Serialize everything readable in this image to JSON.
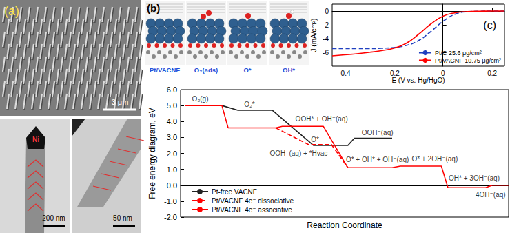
{
  "panels": {
    "a": {
      "label": "(a)",
      "scale_bars": [
        "3 μm",
        "200 nm",
        "50 nm"
      ],
      "particle_label": "Ni"
    },
    "b": {
      "label": "(b)",
      "structures": [
        "Pt/VACNF",
        "O₂(ads)",
        "O*",
        "OH*"
      ]
    }
  },
  "chart_data": [
    {
      "type": "line",
      "x_label": "Reaction Coordinate",
      "y_label": "Free energy diagram, eV",
      "xlim": [
        0,
        10
      ],
      "ylim": [
        -2,
        6
      ],
      "yticks": [
        {
          "value": 6,
          "label": "6.0"
        },
        {
          "value": 5,
          "label": "5.0"
        },
        {
          "value": 4,
          "label": "4.0"
        },
        {
          "value": 3,
          "label": "3.0"
        },
        {
          "value": 2,
          "label": "2.0"
        },
        {
          "value": 1,
          "label": "1.0"
        },
        {
          "value": 0,
          "label": "0.0"
        },
        {
          "value": -1,
          "label": "-1.0"
        },
        {
          "value": -2,
          "label": "-2.0"
        }
      ],
      "tick_labels": "y",
      "grid": false,
      "legend": "lower left",
      "series": [
        {
          "name": "Pt-free VACNF",
          "color": "#222222",
          "line_style": "solid",
          "x": [
            0.13,
            1.26,
            1.75,
            2.8,
            4.05,
            5.1,
            5.3,
            6.45
          ],
          "values": [
            5.0,
            5.0,
            4.7,
            4.7,
            2.5,
            2.5,
            2.95,
            2.95
          ]
        },
        {
          "name": "Pt/VACNF 4e⁻ dissociative",
          "color": "#ff0000",
          "line_style": "dashed",
          "x": [
            2.9,
            3.9,
            4.6,
            5.1
          ],
          "values": [
            3.6,
            2.55,
            2.55,
            1.1
          ]
        },
        {
          "name": "Pt/VACNF 4e⁻ associative",
          "color": "#ff0000",
          "line_style": "solid",
          "x": [
            0.13,
            1.26,
            1.45,
            2.9,
            3.1,
            4.35,
            5.1,
            6.45,
            6.7,
            7.95,
            8.15,
            9.3,
            9.5,
            10
          ],
          "values": [
            5.0,
            5.0,
            3.6,
            3.6,
            3.7,
            3.7,
            1.1,
            1.1,
            1.2,
            1.2,
            -0.15,
            -0.15,
            0.0,
            0.0
          ]
        }
      ],
      "annotations": [
        {
          "text": "O₂(g)",
          "x": 0.6,
          "y": 5.4
        },
        {
          "text": "O₂*",
          "x": 2.1,
          "y": 5.05
        },
        {
          "text": "OOH* + OH⁻(aq)",
          "x": 4.3,
          "y": 4.15
        },
        {
          "text": "OOH⁻(aq)",
          "x": 6.0,
          "y": 3.3
        },
        {
          "text": "O*",
          "x": 4.1,
          "y": 2.85
        },
        {
          "text": "OOH⁻(aq) + *Hvac",
          "x": 3.6,
          "y": 2.0
        },
        {
          "text": "O* + OH* + OH⁻(aq)",
          "x": 6.0,
          "y": 1.6
        },
        {
          "text": "O* + 2OH⁻(aq)",
          "x": 7.75,
          "y": 1.65
        },
        {
          "text": "OH* + 3OH⁻(aq)",
          "x": 8.95,
          "y": 0.45
        },
        {
          "text": "4OH⁻(aq)",
          "x": 9.45,
          "y": -0.6
        }
      ]
    },
    {
      "type": "line",
      "label": "(c)",
      "x_label": "E (V vs. Hg/HgO)",
      "y_label": "J (mA/cm²)",
      "xlim": [
        -0.45,
        0.25
      ],
      "xticks": [
        -0.4,
        -0.2,
        0,
        0.2
      ],
      "ylim": [
        -8,
        1
      ],
      "yticks": [
        0,
        -2,
        -4,
        -6
      ],
      "grid": false,
      "legend": "lower right",
      "series": [
        {
          "name": "Pt/C 25.6 μg/cm²",
          "color": "#2040c0",
          "line_style": "dashed",
          "x": [
            -0.45,
            -0.4,
            -0.35,
            -0.3,
            -0.25,
            -0.2,
            -0.15,
            -0.1,
            -0.05,
            0,
            0.05,
            0.1,
            0.15,
            0.2,
            0.25
          ],
          "values": [
            -5.45,
            -5.45,
            -5.45,
            -5.45,
            -5.4,
            -5.3,
            -5.0,
            -4.3,
            -3.0,
            -1.5,
            -0.45,
            -0.1,
            -0.03,
            0,
            0
          ]
        },
        {
          "name": "Pt/VACNF 10.75 μg/cm²",
          "color": "#ff0000",
          "line_style": "solid",
          "x": [
            -0.45,
            -0.4,
            -0.35,
            -0.3,
            -0.25,
            -0.2,
            -0.15,
            -0.1,
            -0.05,
            0,
            0.05,
            0.1,
            0.15,
            0.2,
            0.25
          ],
          "values": [
            -6.5,
            -6.35,
            -6.2,
            -6.0,
            -5.75,
            -5.4,
            -4.7,
            -3.4,
            -1.9,
            -0.75,
            -0.25,
            -0.08,
            -0.03,
            0,
            0
          ]
        }
      ]
    }
  ]
}
